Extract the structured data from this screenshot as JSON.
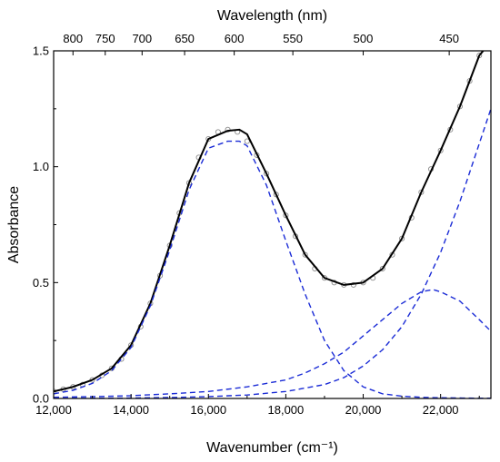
{
  "chart_data": {
    "type": "line",
    "xlabel": "Wavenumber (cm⁻¹)",
    "ylabel": "Absorbance",
    "top_xlabel": "Wavelength (nm)",
    "xlim": [
      12000,
      23300
    ],
    "ylim": [
      0,
      1.5
    ],
    "x_ticks": [
      12000,
      14000,
      16000,
      18000,
      20000,
      22000
    ],
    "x_tick_labels": [
      "12,000",
      "14,000",
      "16,000",
      "18,000",
      "20,000",
      "22,000"
    ],
    "y_ticks": [
      0,
      0.5,
      1.0,
      1.5
    ],
    "y_tick_labels": [
      "0.0",
      "0.5",
      "1.0",
      "1.5"
    ],
    "top_ticks_nm": [
      800,
      750,
      700,
      650,
      600,
      550,
      500,
      450
    ],
    "top_tick_labels": [
      "800",
      "750",
      "700",
      "650",
      "600",
      "550",
      "500",
      "450"
    ],
    "grid": false,
    "legend": "none",
    "colors": {
      "fit": "#000000",
      "components": "#1a2bd6",
      "data_points": "#8a8a8a"
    },
    "series": [
      {
        "style": "open-circles",
        "x": [
          12000,
          12250,
          12500,
          12750,
          13000,
          13250,
          13500,
          13750,
          14000,
          14250,
          14500,
          14750,
          15000,
          15250,
          15500,
          15750,
          16000,
          16250,
          16500,
          16750,
          17000,
          17250,
          17500,
          17750,
          18000,
          18250,
          18500,
          18750,
          19000,
          19250,
          19500,
          19750,
          20000,
          20250,
          20500,
          20750,
          21000,
          21250,
          21500,
          21750,
          22000,
          22250,
          22500,
          22750,
          23000,
          23200
        ],
        "values": [
          0.03,
          0.04,
          0.05,
          0.06,
          0.08,
          0.1,
          0.13,
          0.17,
          0.23,
          0.31,
          0.41,
          0.53,
          0.66,
          0.8,
          0.93,
          1.04,
          1.12,
          1.15,
          1.16,
          1.15,
          1.11,
          1.05,
          0.97,
          0.88,
          0.79,
          0.7,
          0.62,
          0.56,
          0.52,
          0.5,
          0.49,
          0.49,
          0.5,
          0.52,
          0.56,
          0.62,
          0.69,
          0.78,
          0.89,
          0.99,
          1.07,
          1.16,
          1.26,
          1.37,
          1.48,
          1.52
        ]
      },
      {
        "style": "solid",
        "x": [
          12000,
          12500,
          13000,
          13500,
          14000,
          14500,
          15000,
          15500,
          16000,
          16500,
          16800,
          17000,
          17500,
          18000,
          18500,
          19000,
          19500,
          20000,
          20500,
          21000,
          21500,
          22000,
          22500,
          23000,
          23300
        ],
        "values": [
          0.03,
          0.05,
          0.08,
          0.13,
          0.23,
          0.41,
          0.66,
          0.93,
          1.12,
          1.155,
          1.16,
          1.14,
          0.97,
          0.79,
          0.62,
          0.52,
          0.49,
          0.5,
          0.56,
          0.69,
          0.89,
          1.07,
          1.26,
          1.48,
          1.54
        ]
      },
      {
        "style": "dashed",
        "x": [
          12000,
          12500,
          13000,
          13500,
          14000,
          14500,
          15000,
          15500,
          16000,
          16500,
          16800,
          17000,
          17500,
          18000,
          18500,
          19000,
          19500,
          20000,
          20500,
          21000,
          21500,
          22000,
          22500,
          23000,
          23300
        ],
        "values": [
          0.02,
          0.035,
          0.065,
          0.12,
          0.22,
          0.4,
          0.64,
          0.9,
          1.08,
          1.11,
          1.11,
          1.09,
          0.92,
          0.68,
          0.45,
          0.25,
          0.12,
          0.05,
          0.02,
          0.01,
          0.005,
          0.003,
          0.002,
          0.001,
          0.001
        ]
      },
      {
        "style": "dashed",
        "x": [
          12000,
          13000,
          14000,
          15000,
          16000,
          17000,
          18000,
          18500,
          19000,
          19500,
          20000,
          20500,
          21000,
          21500,
          21800,
          22000,
          22500,
          23000,
          23300
        ],
        "values": [
          0.005,
          0.008,
          0.012,
          0.02,
          0.03,
          0.05,
          0.08,
          0.11,
          0.15,
          0.2,
          0.27,
          0.34,
          0.41,
          0.46,
          0.47,
          0.46,
          0.42,
          0.34,
          0.29
        ]
      },
      {
        "style": "dashed",
        "x": [
          12000,
          13000,
          14000,
          15000,
          16000,
          17000,
          18000,
          19000,
          19500,
          20000,
          20500,
          21000,
          21500,
          22000,
          22500,
          23000,
          23300
        ],
        "values": [
          0.0,
          0.001,
          0.002,
          0.004,
          0.008,
          0.015,
          0.03,
          0.06,
          0.09,
          0.14,
          0.21,
          0.31,
          0.45,
          0.63,
          0.85,
          1.1,
          1.25
        ]
      }
    ]
  }
}
